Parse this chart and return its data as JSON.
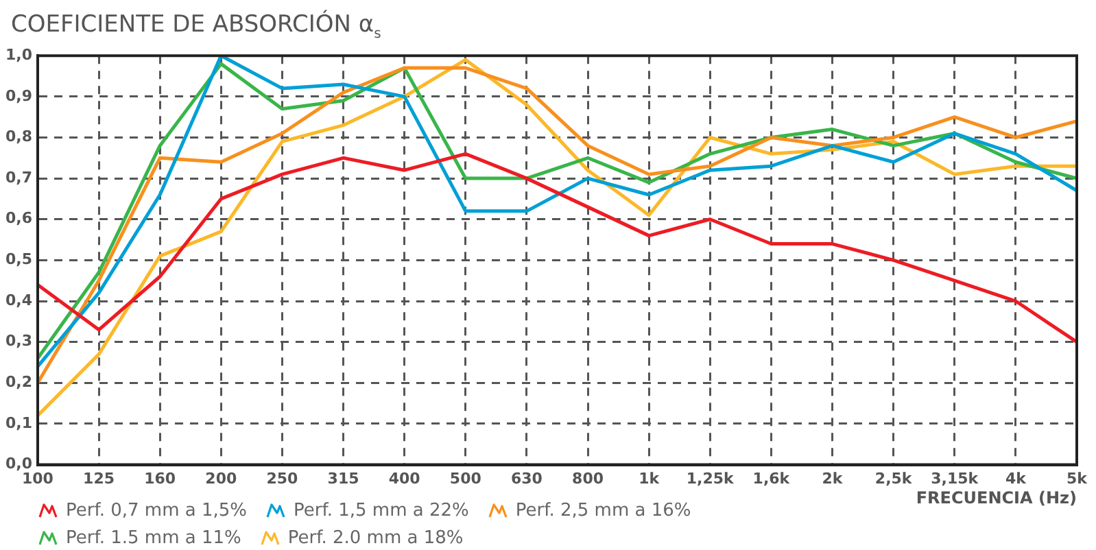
{
  "chart_data": {
    "type": "line",
    "title": "COEFICIENTE DE ABSORCIÓN α$_{s}$",
    "xlabel": "FRECUENCIA (Hz)",
    "categories": [
      "100",
      "125",
      "160",
      "200",
      "250",
      "315",
      "400",
      "500",
      "630",
      "800",
      "1k",
      "1,25k",
      "1,6k",
      "2k",
      "2,5k",
      "3,15k",
      "4k",
      "5k"
    ],
    "ylim": [
      0,
      1
    ],
    "yticks": [
      {
        "value": 0,
        "label": "0,0"
      },
      {
        "value": 0.1,
        "label": "0,1"
      },
      {
        "value": 0.2,
        "label": "0,2"
      },
      {
        "value": 0.3,
        "label": "0,3"
      },
      {
        "value": 0.4,
        "label": "0,4"
      },
      {
        "value": 0.5,
        "label": "0,5"
      },
      {
        "value": 0.6,
        "label": "0,6"
      },
      {
        "value": 0.7,
        "label": "0,7"
      },
      {
        "value": 0.8,
        "label": "0,8"
      },
      {
        "value": 0.9,
        "label": "0,9"
      },
      {
        "value": 1,
        "label": "1,0"
      }
    ],
    "grid": true,
    "legend": "bottom",
    "marker": "none",
    "line_style": "solid",
    "series": [
      {
        "name": "Perf. 0,7 mm a 1,5%",
        "color": "#ed1c24",
        "values": [
          0.44,
          0.33,
          0.46,
          0.65,
          0.71,
          0.75,
          0.72,
          0.76,
          0.7,
          0.63,
          0.56,
          0.6,
          0.54,
          0.54,
          0.5,
          0.45,
          0.4,
          0.3
        ]
      },
      {
        "name": "Perf. 1,5 mm a 22%",
        "color": "#00a0d6",
        "values": [
          0.24,
          0.42,
          0.66,
          1.0,
          0.92,
          0.93,
          0.9,
          0.62,
          0.62,
          0.7,
          0.66,
          0.72,
          0.73,
          0.78,
          0.74,
          0.81,
          0.76,
          0.67
        ]
      },
      {
        "name": "Perf. 2,5 mm a 16%",
        "color": "#f7901e",
        "values": [
          0.2,
          0.45,
          0.75,
          0.74,
          0.81,
          0.91,
          0.97,
          0.97,
          0.92,
          0.78,
          0.71,
          0.73,
          0.8,
          0.78,
          0.8,
          0.85,
          0.8,
          0.84
        ]
      },
      {
        "name": "Perf. 1.5 mm a 11%",
        "color": "#39b54a",
        "values": [
          0.26,
          0.47,
          0.78,
          0.98,
          0.87,
          0.89,
          0.97,
          0.7,
          0.7,
          0.75,
          0.69,
          0.76,
          0.8,
          0.82,
          0.78,
          0.81,
          0.74,
          0.7
        ]
      },
      {
        "name": "Perf. 2.0 mm a 18%",
        "color": "#fbb829",
        "values": [
          0.12,
          0.27,
          0.51,
          0.57,
          0.79,
          0.83,
          0.9,
          0.99,
          0.88,
          0.72,
          0.61,
          0.8,
          0.76,
          0.77,
          0.79,
          0.71,
          0.73,
          0.73
        ]
      }
    ]
  }
}
